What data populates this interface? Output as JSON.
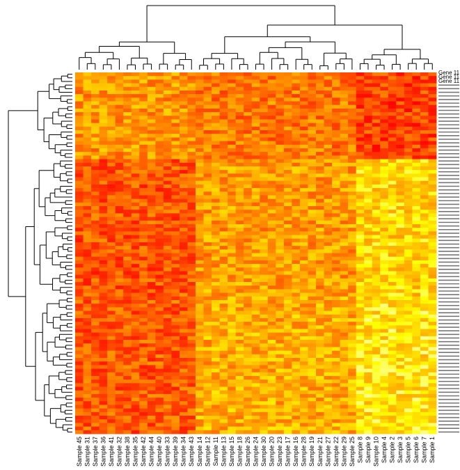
{
  "chart_data": {
    "type": "heatmap",
    "title": "",
    "xlabel": "",
    "ylabel": "",
    "colormap": "heat",
    "low_color": "#ff0000",
    "mid_color": "#ff8c00",
    "high_color": "#ffff66",
    "row_dendrogram": true,
    "column_dendrogram": true,
    "columns": [
      "Sample 45",
      "Sample 31",
      "Sample 37",
      "Sample 36",
      "Sample 41",
      "Sample 32",
      "Sample 38",
      "Sample 35",
      "Sample 42",
      "Sample 44",
      "Sample 40",
      "Sample 33",
      "Sample 39",
      "Sample 34",
      "Sample 43",
      "Sample 14",
      "Sample 12",
      "Sample 11",
      "Sample 13",
      "Sample 15",
      "Sample 18",
      "Sample 26",
      "Sample 24",
      "Sample 30",
      "Sample 20",
      "Sample 23",
      "Sample 17",
      "Sample 16",
      "Sample 28",
      "Sample 19",
      "Sample 21",
      "Sample 27",
      "Sample 22",
      "Sample 29",
      "Sample 25",
      "Sample 8",
      "Sample 9",
      "Sample 10",
      "Sample 4",
      "Sample 2",
      "Sample 3",
      "Sample 5",
      "Sample 6",
      "Sample 7",
      "Sample 1"
    ],
    "row_labels": [
      "Gene 11",
      "Gene 11",
      "Gene 11"
    ],
    "rows": 100
  }
}
